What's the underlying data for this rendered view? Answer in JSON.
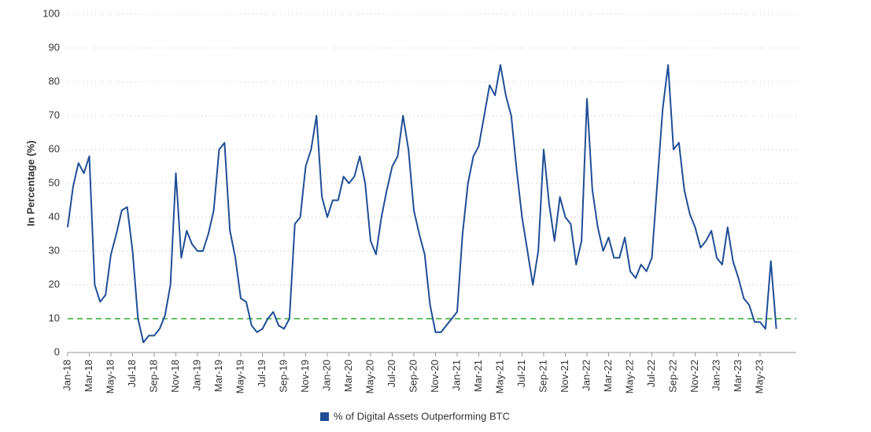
{
  "chart_data": {
    "type": "line",
    "ylabel": "In Percentage (%)",
    "categories": [
      "Jan-18",
      null,
      null,
      null,
      "Mar-18",
      null,
      null,
      null,
      "May-18",
      null,
      null,
      null,
      "Jul-18",
      null,
      null,
      null,
      "Sep-18",
      null,
      null,
      null,
      "Nov-18",
      null,
      null,
      null,
      "Jan-19",
      null,
      null,
      null,
      "Mar-19",
      null,
      null,
      null,
      "May-19",
      null,
      null,
      null,
      "Jul-19",
      null,
      null,
      null,
      "Sep-19",
      null,
      null,
      null,
      "Nov-19",
      null,
      null,
      null,
      "Jan-20",
      null,
      null,
      null,
      "Mar-20",
      null,
      null,
      null,
      "May-20",
      null,
      null,
      null,
      "Jul-20",
      null,
      null,
      null,
      "Sep-20",
      null,
      null,
      null,
      "Nov-20",
      null,
      null,
      null,
      "Jan-21",
      null,
      null,
      null,
      "Mar-21",
      null,
      null,
      null,
      "May-21",
      null,
      null,
      null,
      "Jul-21",
      null,
      null,
      null,
      "Sep-21",
      null,
      null,
      null,
      "Nov-21",
      null,
      null,
      null,
      "Jan-22",
      null,
      null,
      null,
      "Mar-22",
      null,
      null,
      null,
      "May-22",
      null,
      null,
      null,
      "Jul-22",
      null,
      null,
      null,
      "Sep-22",
      null,
      null,
      null,
      "Nov-22",
      null,
      null,
      null,
      "Jan-23",
      null,
      null,
      null,
      "Mar-23",
      null,
      null,
      null,
      "May-23",
      null,
      null,
      null
    ],
    "series": [
      {
        "name": "% of Digital Assets Outperforming BTC",
        "color": "#1f4e96",
        "values": [
          37,
          49,
          56,
          53,
          58,
          20,
          15,
          17,
          29,
          35,
          42,
          43,
          30,
          10,
          3,
          5,
          5,
          7,
          11,
          20,
          53,
          28,
          36,
          32,
          30,
          30,
          35,
          42,
          60,
          62,
          36,
          28,
          16,
          15,
          8,
          6,
          7,
          10,
          12,
          8,
          7,
          10,
          38,
          40,
          55,
          60,
          70,
          46,
          40,
          45,
          45,
          52,
          50,
          52,
          58,
          50,
          33,
          29,
          40,
          48,
          55,
          58,
          70,
          60,
          42,
          35,
          29,
          14,
          6,
          6,
          8,
          10,
          12,
          35,
          50,
          58,
          61,
          70,
          79,
          76,
          85,
          76,
          70,
          54,
          40,
          30,
          20,
          30,
          60,
          44,
          33,
          46,
          40,
          38,
          26,
          33,
          75,
          48,
          37,
          30,
          34,
          28,
          28,
          34,
          24,
          22,
          26,
          24,
          28,
          50,
          72,
          85,
          60,
          62,
          48,
          41,
          37,
          31,
          33,
          36,
          28,
          26,
          37,
          27,
          22,
          16,
          14,
          9,
          9,
          7,
          27,
          7
        ]
      }
    ],
    "ylim": [
      0,
      100
    ],
    "yticks": [
      0,
      10,
      20,
      30,
      40,
      50,
      60,
      70,
      80,
      90,
      100
    ],
    "grid": true,
    "reference_line": {
      "value": 10,
      "color": "#2eaa2e"
    },
    "legend": "bottom"
  }
}
